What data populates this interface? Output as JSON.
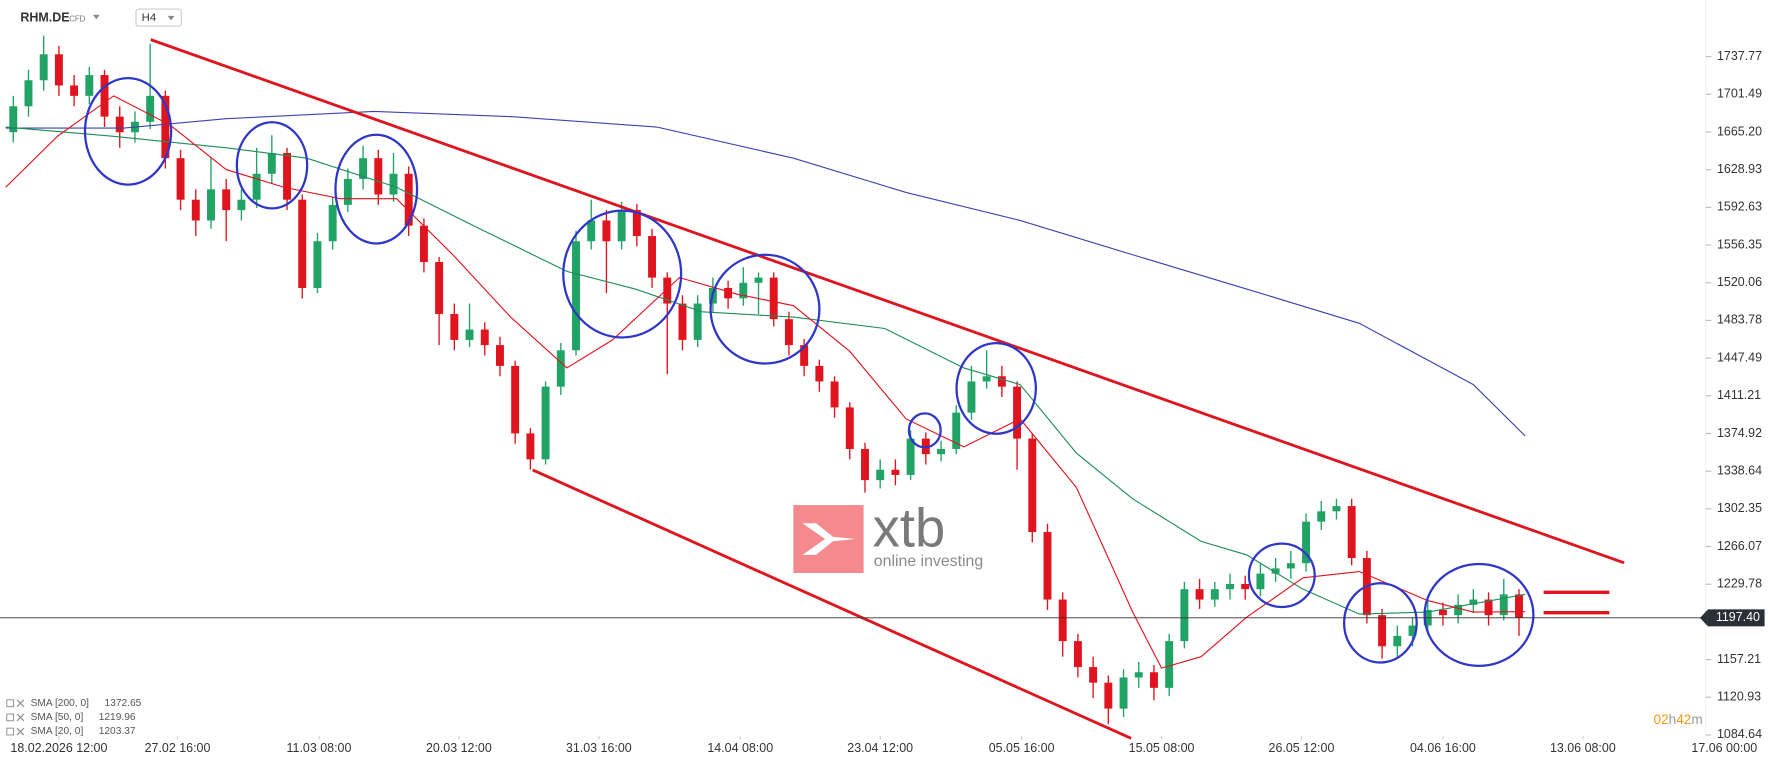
{
  "header": {
    "symbol": "RHM.DE",
    "instrument_type": "CFD",
    "interval": "H4"
  },
  "watermark": {
    "brand": "xtb",
    "tagline": "online investing"
  },
  "timer": [
    "02",
    "h",
    "42",
    "m"
  ],
  "chart_data": {
    "type": "candlestick",
    "xlim": [
      0,
      116
    ],
    "ylim": [
      1059.56,
      1792.29
    ],
    "yticks": [
      1737.77,
      1701.49,
      {
        "value": 1665.2,
        "label": "1665.20"
      },
      1628.93,
      1592.63,
      1556.35,
      1520.06,
      1483.78,
      1447.49,
      1411.21,
      1374.92,
      1338.64,
      1302.35,
      1266.07,
      1229.78,
      1157.21,
      1120.93,
      1084.64
    ],
    "xticks": [
      {
        "value": 3.5,
        "label": "18.02.2026 12:00"
      },
      {
        "value": 11.3,
        "label": "27.02 16:00"
      },
      {
        "value": 20.6,
        "label": "11.03 08:00"
      },
      {
        "value": 29.8,
        "label": "20.03 12:00"
      },
      {
        "value": 39.0,
        "label": "31.03 16:00"
      },
      {
        "value": 48.3,
        "label": "14.04 08:00"
      },
      {
        "value": 57.5,
        "label": "23.04 12:00"
      },
      {
        "value": 66.8,
        "label": "05.05 16:00"
      },
      {
        "value": 76.0,
        "label": "15.05 08:00"
      },
      {
        "value": 85.2,
        "label": "26.05 12:00"
      },
      {
        "value": 94.5,
        "label": "04.06 16:00"
      },
      {
        "value": 103.7,
        "label": "13.06 08:00"
      },
      {
        "value": 113.0,
        "label": "17.06 00:00"
      }
    ],
    "up_color": "#21a366",
    "down_color": "#e0141e",
    "current_price": {
      "value": 1197.4,
      "label": "1197.40"
    },
    "ohlc": [
      [
        1665,
        1700,
        1655,
        1690
      ],
      [
        1690,
        1725,
        1680,
        1715
      ],
      [
        1715,
        1758,
        1705,
        1740
      ],
      [
        1740,
        1748,
        1700,
        1710
      ],
      [
        1710,
        1720,
        1690,
        1700
      ],
      [
        1700,
        1728,
        1692,
        1720
      ],
      [
        1720,
        1725,
        1670,
        1680
      ],
      [
        1680,
        1690,
        1650,
        1665
      ],
      [
        1665,
        1685,
        1655,
        1675
      ],
      [
        1675,
        1750,
        1668,
        1700
      ],
      [
        1700,
        1705,
        1630,
        1640
      ],
      [
        1640,
        1648,
        1590,
        1600
      ],
      [
        1600,
        1610,
        1565,
        1580
      ],
      [
        1580,
        1640,
        1572,
        1610
      ],
      [
        1610,
        1620,
        1560,
        1590
      ],
      [
        1590,
        1610,
        1580,
        1600
      ],
      [
        1600,
        1650,
        1592,
        1625
      ],
      [
        1625,
        1662,
        1615,
        1645
      ],
      [
        1645,
        1650,
        1590,
        1600
      ],
      [
        1600,
        1605,
        1505,
        1515
      ],
      [
        1515,
        1568,
        1510,
        1560
      ],
      [
        1560,
        1602,
        1552,
        1595
      ],
      [
        1595,
        1630,
        1588,
        1620
      ],
      [
        1620,
        1652,
        1610,
        1640
      ],
      [
        1640,
        1648,
        1595,
        1605
      ],
      [
        1605,
        1645,
        1598,
        1625
      ],
      [
        1625,
        1632,
        1565,
        1575
      ],
      [
        1575,
        1582,
        1530,
        1540
      ],
      [
        1540,
        1545,
        1460,
        1490
      ],
      [
        1490,
        1500,
        1455,
        1465
      ],
      [
        1465,
        1500,
        1458,
        1475
      ],
      [
        1475,
        1482,
        1450,
        1460
      ],
      [
        1460,
        1468,
        1430,
        1440
      ],
      [
        1440,
        1445,
        1365,
        1375
      ],
      [
        1375,
        1380,
        1340,
        1350
      ],
      [
        1350,
        1425,
        1345,
        1420
      ],
      [
        1420,
        1462,
        1412,
        1455
      ],
      [
        1455,
        1570,
        1450,
        1560
      ],
      [
        1560,
        1600,
        1552,
        1580
      ],
      [
        1580,
        1590,
        1510,
        1560
      ],
      [
        1560,
        1598,
        1552,
        1590
      ],
      [
        1590,
        1596,
        1555,
        1565
      ],
      [
        1565,
        1572,
        1515,
        1525
      ],
      [
        1525,
        1530,
        1432,
        1500
      ],
      [
        1500,
        1508,
        1455,
        1465
      ],
      [
        1465,
        1508,
        1458,
        1500
      ],
      [
        1500,
        1525,
        1492,
        1515
      ],
      [
        1515,
        1522,
        1495,
        1505
      ],
      [
        1505,
        1535,
        1498,
        1520
      ],
      [
        1520,
        1530,
        1490,
        1525
      ],
      [
        1525,
        1530,
        1478,
        1485
      ],
      [
        1485,
        1492,
        1450,
        1460
      ],
      [
        1460,
        1466,
        1430,
        1440
      ],
      [
        1440,
        1446,
        1415,
        1425
      ],
      [
        1425,
        1430,
        1390,
        1400
      ],
      [
        1400,
        1405,
        1350,
        1360
      ],
      [
        1360,
        1366,
        1318,
        1330
      ],
      [
        1330,
        1350,
        1322,
        1340
      ],
      [
        1340,
        1350,
        1325,
        1335
      ],
      [
        1335,
        1378,
        1330,
        1370
      ],
      [
        1370,
        1376,
        1345,
        1355
      ],
      [
        1355,
        1368,
        1348,
        1360
      ],
      [
        1360,
        1402,
        1355,
        1395
      ],
      [
        1395,
        1440,
        1388,
        1425
      ],
      [
        1425,
        1455,
        1418,
        1430
      ],
      [
        1430,
        1440,
        1410,
        1420
      ],
      [
        1420,
        1425,
        1340,
        1370
      ],
      [
        1370,
        1375,
        1270,
        1280
      ],
      [
        1280,
        1288,
        1205,
        1215
      ],
      [
        1215,
        1222,
        1160,
        1175
      ],
      [
        1175,
        1182,
        1140,
        1150
      ],
      [
        1150,
        1160,
        1120,
        1135
      ],
      [
        1135,
        1142,
        1095,
        1110
      ],
      [
        1110,
        1148,
        1102,
        1140
      ],
      [
        1140,
        1155,
        1130,
        1145
      ],
      [
        1145,
        1152,
        1118,
        1130
      ],
      [
        1130,
        1182,
        1122,
        1175
      ],
      [
        1175,
        1232,
        1168,
        1225
      ],
      [
        1225,
        1235,
        1206,
        1215
      ],
      [
        1215,
        1232,
        1208,
        1225
      ],
      [
        1225,
        1240,
        1215,
        1230
      ],
      [
        1230,
        1238,
        1215,
        1225
      ],
      [
        1225,
        1250,
        1218,
        1240
      ],
      [
        1240,
        1255,
        1232,
        1245
      ],
      [
        1245,
        1262,
        1235,
        1250
      ],
      [
        1250,
        1298,
        1242,
        1290
      ],
      [
        1290,
        1310,
        1282,
        1300
      ],
      [
        1300,
        1312,
        1292,
        1305
      ],
      [
        1305,
        1312,
        1248,
        1255
      ],
      [
        1255,
        1262,
        1192,
        1200
      ],
      [
        1200,
        1206,
        1158,
        1170
      ],
      [
        1170,
        1190,
        1160,
        1180
      ],
      [
        1180,
        1198,
        1170,
        1190
      ],
      [
        1190,
        1215,
        1182,
        1205
      ],
      [
        1205,
        1212,
        1190,
        1200
      ],
      [
        1200,
        1220,
        1192,
        1210
      ],
      [
        1210,
        1225,
        1202,
        1215
      ],
      [
        1215,
        1222,
        1190,
        1200
      ],
      [
        1200,
        1235,
        1195,
        1220
      ],
      [
        1220,
        1225,
        1180,
        1197.4
      ]
    ],
    "series": [
      {
        "name": "SMA [200, 0]",
        "last": 1372.65,
        "color": "#3a45b0",
        "x": [
          0,
          7.8,
          14.5,
          24.2,
          33.2,
          42.8,
          51.8,
          59.2,
          66.7,
          74.1,
          81.6,
          89.0,
          96.5,
          99.9
        ],
        "values": [
          1669,
          1669,
          1678,
          1685,
          1680,
          1670,
          1640,
          1607,
          1580,
          1547,
          1514,
          1481,
          1422,
          1372.65
        ]
      },
      {
        "name": "SMA [50, 0]",
        "last": 1219.96,
        "color": "#1e8c5a",
        "x": [
          0,
          7.1,
          14.5,
          19.8,
          25.7,
          30.9,
          36.9,
          41.4,
          45.8,
          51.8,
          57.8,
          63.0,
          66.7,
          70.4,
          74.1,
          78.6,
          81.6,
          85.3,
          89.0,
          93.5,
          99.9
        ],
        "values": [
          1670,
          1661,
          1650,
          1640,
          1612,
          1574,
          1531,
          1514,
          1492,
          1487,
          1476,
          1438,
          1422,
          1356,
          1312,
          1271,
          1258,
          1225,
          1201,
          1203,
          1219.96
        ]
      },
      {
        "name": "SMA [20, 0]",
        "last": 1203.37,
        "color": "#e0141e",
        "x": [
          0,
          3.4,
          7.1,
          10.8,
          14.5,
          18.3,
          22.0,
          25.7,
          29.4,
          33.2,
          36.9,
          39.9,
          44.3,
          48.1,
          51.8,
          55.5,
          59.2,
          63.0,
          66.7,
          70.4,
          74.1,
          76.0,
          78.6,
          81.6,
          85.3,
          89.0,
          93.5,
          96.5,
          99.9
        ],
        "values": [
          1612,
          1661,
          1700,
          1672,
          1629,
          1612,
          1601,
          1601,
          1547,
          1487,
          1438,
          1465,
          1525,
          1509,
          1498,
          1454,
          1389,
          1362,
          1389,
          1323,
          1203,
          1149,
          1160,
          1198,
          1236,
          1242,
          1214,
          1203,
          1203.37
        ]
      }
    ]
  }
}
